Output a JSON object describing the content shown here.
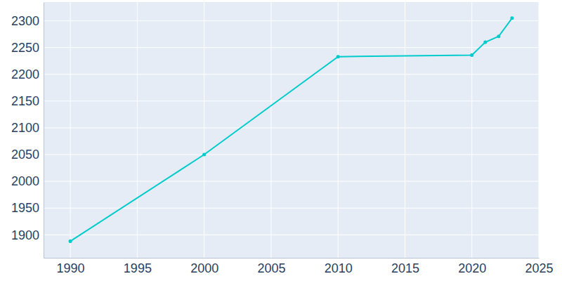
{
  "chart_data": {
    "type": "line",
    "x": [
      1990,
      2000,
      2010,
      2020,
      2021,
      2022,
      2023
    ],
    "values": [
      1888,
      2050,
      2233,
      2236,
      2260,
      2271,
      2305
    ],
    "color": "#00cccc",
    "marker": "circle",
    "xlim": [
      1988,
      2025
    ],
    "xticks": [
      1990,
      1995,
      2000,
      2005,
      2010,
      2015,
      2020,
      2025
    ],
    "ylim": [
      1857,
      2335
    ],
    "yticks": [
      1900,
      1950,
      2000,
      2050,
      2100,
      2150,
      2200,
      2250,
      2300
    ],
    "grid": true
  }
}
